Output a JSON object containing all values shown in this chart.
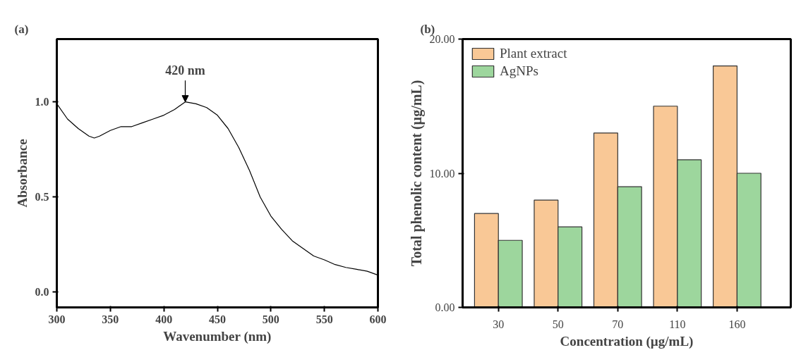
{
  "chart_data": [
    {
      "type": "line",
      "title": "(a)",
      "xlabel": "Wavenumber (nm)",
      "ylabel": "Absorbance",
      "xlim": [
        300,
        600
      ],
      "xticks": [
        300,
        350,
        400,
        450,
        500,
        550,
        600
      ],
      "ylim": [
        -0.08,
        1.33
      ],
      "yticks": [
        {
          "value": 0,
          "label": "0.0"
        },
        0.5,
        {
          "value": 1,
          "label": "1.0"
        }
      ],
      "grid": false,
      "marker": "none",
      "line_style": "solid",
      "x": [
        300,
        310,
        320,
        330,
        335,
        340,
        350,
        360,
        370,
        380,
        390,
        400,
        410,
        420,
        430,
        440,
        450,
        460,
        470,
        480,
        490,
        500,
        510,
        520,
        530,
        540,
        550,
        560,
        570,
        580,
        590,
        600
      ],
      "series": [
        {
          "color": "#000000",
          "values": [
            0.99,
            0.91,
            0.86,
            0.82,
            0.81,
            0.82,
            0.85,
            0.87,
            0.87,
            0.89,
            0.91,
            0.93,
            0.96,
            1.0,
            0.99,
            0.97,
            0.93,
            0.86,
            0.76,
            0.64,
            0.5,
            0.4,
            0.33,
            0.27,
            0.23,
            0.19,
            0.17,
            0.145,
            0.13,
            0.12,
            0.11,
            0.09
          ]
        }
      ],
      "annotations": [
        {
          "text": "420 nm",
          "x": 420,
          "y": 1.0
        }
      ]
    },
    {
      "type": "bar",
      "title": "(b)",
      "xlabel": "Concentration (µg/mL)",
      "ylabel": "Total phenolic content (µg/mL)",
      "categories": [
        "30",
        "50",
        "70",
        "110",
        "160"
      ],
      "ylim": [
        0,
        20
      ],
      "yticks": [
        {
          "value": 0,
          "label": "0.00"
        },
        {
          "value": 10,
          "label": "10.00"
        },
        {
          "value": 20,
          "label": "20.00"
        }
      ],
      "grid": false,
      "legend": "top left",
      "series": [
        {
          "name": "Plant extract",
          "color": "#f9c896",
          "values": [
            7,
            8,
            13,
            15,
            18
          ]
        },
        {
          "name": "AgNPs",
          "color": "#9dd69d",
          "values": [
            5,
            6,
            9,
            11,
            10
          ]
        }
      ]
    }
  ]
}
